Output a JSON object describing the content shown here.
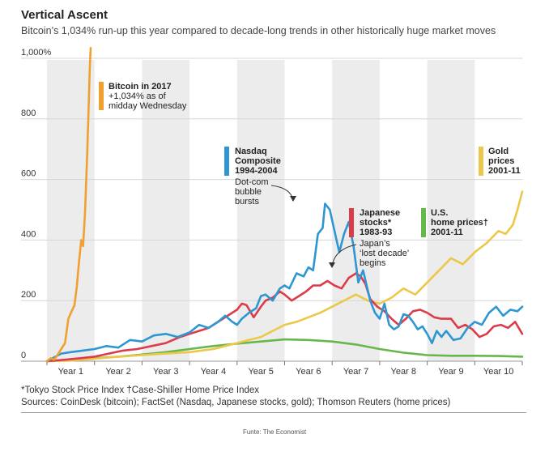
{
  "header": {
    "title": "Vertical Ascent",
    "subtitle": "Bitcoin’s 1,034% run-up this year compared to decade-long trends in other historically huge market moves"
  },
  "footnotes": {
    "line1": "*Tokyo Stock Price Index   †Case-Shiller Home Price Index",
    "line2": "Sources: CoinDesk (bitcoin); FactSet (Nasdaq, Japanese stocks, gold); Thomson Reuters (home prices)"
  },
  "credit": "Funte: The Economist",
  "chart_data": {
    "type": "line",
    "title": "Vertical Ascent",
    "subtitle": "Bitcoin’s 1,034% run-up this year compared to decade-long trends in other historically huge market moves",
    "ylim": [
      0,
      1000
    ],
    "y_ticks": [
      "0",
      "200",
      "400",
      "600",
      "800",
      "1,000%"
    ],
    "y_tick_values": [
      0,
      200,
      400,
      600,
      800,
      1000
    ],
    "xlim": [
      0,
      10
    ],
    "x_ticks": [
      "Year 1",
      "Year 2",
      "Year 3",
      "Year 4",
      "Year 5",
      "Year 6",
      "Year 7",
      "Year 8",
      "Year 9",
      "Year 10"
    ],
    "grid": "horizontal",
    "colors": {
      "bitcoin": "#f0a030",
      "nasdaq": "#2e96d2",
      "japan": "#dc3c4a",
      "gold": "#ecc84a",
      "home": "#66b84a",
      "band": "#ececec",
      "grid": "#d6d6d6"
    },
    "series": [
      {
        "id": "bitcoin",
        "name": "Bitcoin in 2017",
        "color": "#f0a030",
        "x": [
          0,
          0.08,
          0.15,
          0.22,
          0.3,
          0.38,
          0.45,
          0.52,
          0.58,
          0.63,
          0.67,
          0.72,
          0.76,
          0.8,
          0.85,
          0.88,
          0.9,
          0.92
        ],
        "y": [
          0,
          10,
          5,
          20,
          40,
          60,
          140,
          165,
          185,
          250,
          320,
          400,
          380,
          490,
          700,
          860,
          960,
          1034
        ]
      },
      {
        "id": "nasdaq",
        "name": "Nasdaq Composite 1994-2004",
        "color": "#2e96d2",
        "x": [
          0,
          0.3,
          0.5,
          0.75,
          1.0,
          1.25,
          1.5,
          1.75,
          2.0,
          2.25,
          2.5,
          2.75,
          3.0,
          3.2,
          3.4,
          3.6,
          3.75,
          3.9,
          4.0,
          4.1,
          4.25,
          4.4,
          4.5,
          4.6,
          4.75,
          4.9,
          5.0,
          5.1,
          5.25,
          5.4,
          5.5,
          5.6,
          5.7,
          5.8,
          5.85,
          5.95,
          6.05,
          6.15,
          6.25,
          6.35,
          6.45,
          6.55,
          6.65,
          6.8,
          6.9,
          7.0,
          7.1,
          7.2,
          7.3,
          7.4,
          7.5,
          7.6,
          7.7,
          7.8,
          7.9,
          8.0,
          8.1,
          8.2,
          8.3,
          8.4,
          8.55,
          8.7,
          8.85,
          9.0,
          9.15,
          9.3,
          9.45,
          9.6,
          9.75,
          9.9,
          10.0
        ],
        "y": [
          0,
          25,
          30,
          35,
          40,
          50,
          45,
          70,
          65,
          85,
          90,
          80,
          95,
          120,
          110,
          130,
          150,
          130,
          120,
          140,
          160,
          175,
          215,
          220,
          200,
          240,
          250,
          240,
          290,
          280,
          310,
          300,
          420,
          440,
          520,
          500,
          430,
          360,
          420,
          460,
          380,
          260,
          300,
          200,
          160,
          140,
          190,
          120,
          105,
          115,
          155,
          150,
          130,
          105,
          115,
          90,
          60,
          100,
          80,
          100,
          70,
          75,
          110,
          130,
          120,
          160,
          180,
          150,
          170,
          165,
          180
        ]
      },
      {
        "id": "japan",
        "name": "Japanese stocks* 1983-93",
        "color": "#dc3c4a",
        "x": [
          0,
          0.4,
          0.7,
          1.0,
          1.3,
          1.6,
          1.9,
          2.2,
          2.5,
          2.8,
          3.0,
          3.2,
          3.4,
          3.6,
          3.8,
          4.0,
          4.1,
          4.2,
          4.35,
          4.5,
          4.6,
          4.75,
          4.9,
          5.0,
          5.15,
          5.3,
          5.45,
          5.6,
          5.75,
          5.9,
          6.05,
          6.2,
          6.35,
          6.5,
          6.6,
          6.7,
          6.8,
          6.95,
          7.1,
          7.25,
          7.4,
          7.55,
          7.7,
          7.85,
          8.0,
          8.15,
          8.3,
          8.5,
          8.65,
          8.8,
          8.95,
          9.1,
          9.25,
          9.4,
          9.55,
          9.7,
          9.85,
          10.0
        ],
        "y": [
          0,
          5,
          10,
          15,
          25,
          35,
          40,
          50,
          60,
          80,
          90,
          100,
          110,
          130,
          150,
          170,
          190,
          185,
          145,
          180,
          200,
          210,
          230,
          220,
          200,
          215,
          230,
          250,
          250,
          265,
          250,
          240,
          275,
          290,
          280,
          255,
          205,
          180,
          165,
          140,
          120,
          140,
          165,
          170,
          160,
          145,
          140,
          140,
          110,
          120,
          105,
          80,
          90,
          115,
          120,
          110,
          130,
          90
        ]
      },
      {
        "id": "gold",
        "name": "Gold prices 2001-11",
        "color": "#ecc84a",
        "x": [
          0,
          0.5,
          1.0,
          1.5,
          2.0,
          2.5,
          3.0,
          3.5,
          4.0,
          4.25,
          4.5,
          4.75,
          5.0,
          5.25,
          5.5,
          5.75,
          6.0,
          6.25,
          6.5,
          6.75,
          7.0,
          7.25,
          7.5,
          7.75,
          8.0,
          8.25,
          8.5,
          8.75,
          9.0,
          9.25,
          9.5,
          9.65,
          9.8,
          9.9,
          10.0
        ],
        "y": [
          0,
          2,
          8,
          15,
          20,
          25,
          30,
          40,
          60,
          70,
          80,
          100,
          120,
          130,
          145,
          160,
          180,
          200,
          220,
          200,
          190,
          210,
          240,
          220,
          260,
          300,
          340,
          320,
          360,
          390,
          430,
          420,
          450,
          500,
          560
        ]
      },
      {
        "id": "home",
        "name": "U.S. home prices† 2001-11",
        "color": "#66b84a",
        "x": [
          0,
          0.5,
          1.0,
          1.5,
          2.0,
          2.5,
          3.0,
          3.5,
          4.0,
          4.5,
          5.0,
          5.5,
          6.0,
          6.5,
          7.0,
          7.5,
          8.0,
          8.5,
          9.0,
          9.5,
          10.0
        ],
        "y": [
          0,
          5,
          10,
          15,
          22,
          30,
          40,
          50,
          58,
          65,
          72,
          70,
          65,
          55,
          40,
          28,
          20,
          18,
          18,
          17,
          15
        ]
      }
    ],
    "annotations": [
      {
        "series": "bitcoin",
        "lines": [
          "Bitcoin in 2017",
          "+1,034% as of",
          "midday Wednesday"
        ],
        "bold_lines": 1
      },
      {
        "series": "nasdaq",
        "lines": [
          "Nasdaq",
          "Composite",
          "1994-2004"
        ],
        "bold_lines": 3
      },
      {
        "series": "nasdaq",
        "lines": [
          "Dot-com",
          "bubble",
          "bursts"
        ],
        "bold_lines": 0,
        "callout": true
      },
      {
        "series": "japan",
        "lines": [
          "Japanese",
          "stocks*",
          "1983-93"
        ],
        "bold_lines": 3
      },
      {
        "series": "japan",
        "lines": [
          "Japan’s",
          "‘lost decade’",
          "begins"
        ],
        "bold_lines": 0,
        "callout": true
      },
      {
        "series": "home",
        "lines": [
          "U.S.",
          "home prices†",
          "2001-11"
        ],
        "bold_lines": 3
      },
      {
        "series": "gold",
        "lines": [
          "Gold",
          "prices",
          "2001-11"
        ],
        "bold_lines": 3
      }
    ]
  }
}
